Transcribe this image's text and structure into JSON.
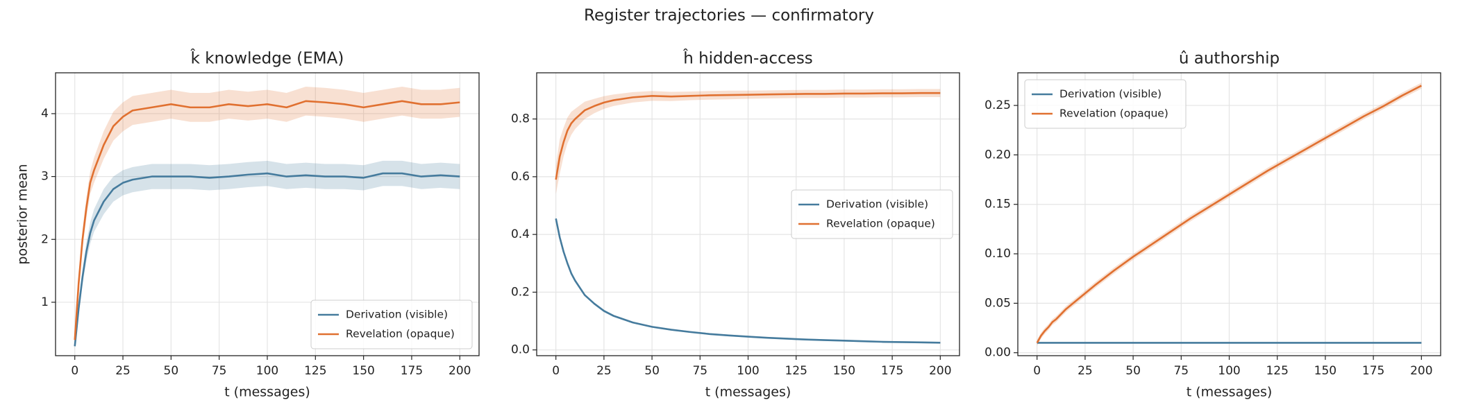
{
  "title": "Register trajectories — confirmatory",
  "chart_data": [
    {
      "type": "line",
      "title": "k̂ knowledge (EMA)",
      "xlabel": "t (messages)",
      "ylabel": "posterior mean",
      "x": [
        0,
        2,
        4,
        6,
        8,
        10,
        15,
        20,
        25,
        30,
        40,
        50,
        60,
        70,
        80,
        90,
        100,
        110,
        120,
        130,
        140,
        150,
        160,
        170,
        180,
        190,
        200
      ],
      "xlim": [
        -10,
        210
      ],
      "xticks": [
        0,
        25,
        50,
        75,
        100,
        125,
        150,
        175,
        200
      ],
      "ylim": [
        0.15,
        4.65
      ],
      "yticks": [
        1,
        2,
        3,
        4
      ],
      "grid": true,
      "legend": "lower right",
      "series": [
        {
          "name": "Derivation (visible)",
          "color": "#457b9d",
          "values": [
            0.3,
            0.9,
            1.4,
            1.8,
            2.1,
            2.3,
            2.6,
            2.8,
            2.9,
            2.95,
            3.0,
            3.0,
            3.0,
            2.98,
            3.0,
            3.03,
            3.05,
            3.0,
            3.02,
            3.0,
            3.0,
            2.98,
            3.05,
            3.05,
            3.0,
            3.02,
            3.0
          ],
          "lower": [
            0.25,
            0.8,
            1.28,
            1.65,
            1.93,
            2.12,
            2.4,
            2.6,
            2.7,
            2.75,
            2.8,
            2.8,
            2.8,
            2.78,
            2.8,
            2.83,
            2.85,
            2.8,
            2.82,
            2.8,
            2.8,
            2.78,
            2.85,
            2.85,
            2.8,
            2.82,
            2.8
          ],
          "upper": [
            0.35,
            1.0,
            1.52,
            1.95,
            2.27,
            2.48,
            2.8,
            3.0,
            3.1,
            3.15,
            3.2,
            3.2,
            3.2,
            3.18,
            3.2,
            3.23,
            3.25,
            3.2,
            3.22,
            3.2,
            3.2,
            3.18,
            3.25,
            3.25,
            3.2,
            3.22,
            3.2
          ]
        },
        {
          "name": "Revelation (opaque)",
          "color": "#e07030",
          "values": [
            0.4,
            1.3,
            2.0,
            2.5,
            2.9,
            3.1,
            3.5,
            3.8,
            3.95,
            4.05,
            4.1,
            4.15,
            4.1,
            4.1,
            4.15,
            4.12,
            4.15,
            4.1,
            4.2,
            4.18,
            4.15,
            4.1,
            4.15,
            4.2,
            4.15,
            4.15,
            4.18
          ],
          "lower": [
            0.32,
            1.18,
            1.85,
            2.33,
            2.72,
            2.9,
            3.28,
            3.57,
            3.72,
            3.82,
            3.87,
            3.92,
            3.87,
            3.87,
            3.92,
            3.89,
            3.92,
            3.87,
            3.97,
            3.95,
            3.92,
            3.87,
            3.92,
            3.97,
            3.92,
            3.92,
            3.95
          ],
          "upper": [
            0.48,
            1.42,
            2.15,
            2.67,
            3.08,
            3.3,
            3.72,
            4.03,
            4.18,
            4.28,
            4.33,
            4.38,
            4.33,
            4.33,
            4.38,
            4.35,
            4.38,
            4.33,
            4.43,
            4.41,
            4.38,
            4.33,
            4.38,
            4.43,
            4.38,
            4.38,
            4.41
          ]
        }
      ]
    },
    {
      "type": "line",
      "title": "ĥ hidden-access",
      "xlabel": "t (messages)",
      "x": [
        0,
        2,
        4,
        6,
        8,
        10,
        15,
        20,
        25,
        30,
        40,
        50,
        60,
        70,
        80,
        90,
        100,
        110,
        120,
        130,
        140,
        150,
        160,
        170,
        180,
        190,
        200
      ],
      "xlim": [
        -10,
        210
      ],
      "xticks": [
        0,
        25,
        50,
        75,
        100,
        125,
        150,
        175,
        200
      ],
      "ylim": [
        -0.02,
        0.96
      ],
      "yticks": [
        {
          "value": 0,
          "label": "0.0"
        },
        0.2,
        0.4,
        0.6,
        0.8
      ],
      "grid": true,
      "legend": "center right",
      "series": [
        {
          "name": "Derivation (visible)",
          "color": "#457b9d",
          "values": [
            0.455,
            0.39,
            0.34,
            0.3,
            0.265,
            0.24,
            0.19,
            0.16,
            0.135,
            0.118,
            0.095,
            0.08,
            0.07,
            0.062,
            0.055,
            0.05,
            0.046,
            0.042,
            0.039,
            0.036,
            0.034,
            0.032,
            0.03,
            0.028,
            0.027,
            0.026,
            0.025
          ],
          "lower": [
            0.45,
            0.385,
            0.335,
            0.295,
            0.26,
            0.235,
            0.186,
            0.156,
            0.131,
            0.114,
            0.092,
            0.077,
            0.067,
            0.059,
            0.052,
            0.047,
            0.043,
            0.039,
            0.036,
            0.033,
            0.031,
            0.029,
            0.027,
            0.025,
            0.024,
            0.023,
            0.022
          ],
          "upper": [
            0.46,
            0.395,
            0.345,
            0.305,
            0.27,
            0.245,
            0.194,
            0.164,
            0.139,
            0.122,
            0.098,
            0.083,
            0.073,
            0.065,
            0.058,
            0.053,
            0.049,
            0.045,
            0.042,
            0.039,
            0.037,
            0.035,
            0.033,
            0.031,
            0.03,
            0.029,
            0.028
          ]
        },
        {
          "name": "Revelation (opaque)",
          "color": "#e07030",
          "values": [
            0.59,
            0.67,
            0.72,
            0.76,
            0.785,
            0.8,
            0.83,
            0.845,
            0.857,
            0.865,
            0.875,
            0.88,
            0.878,
            0.88,
            0.882,
            0.883,
            0.884,
            0.885,
            0.886,
            0.887,
            0.887,
            0.888,
            0.888,
            0.889,
            0.889,
            0.89,
            0.89
          ],
          "lower": [
            0.54,
            0.61,
            0.67,
            0.715,
            0.745,
            0.765,
            0.8,
            0.82,
            0.835,
            0.845,
            0.857,
            0.863,
            0.862,
            0.865,
            0.867,
            0.868,
            0.87,
            0.871,
            0.872,
            0.873,
            0.873,
            0.874,
            0.874,
            0.875,
            0.875,
            0.876,
            0.876
          ],
          "upper": [
            0.64,
            0.73,
            0.77,
            0.805,
            0.825,
            0.835,
            0.86,
            0.87,
            0.879,
            0.885,
            0.893,
            0.897,
            0.894,
            0.895,
            0.897,
            0.898,
            0.898,
            0.899,
            0.9,
            0.901,
            0.901,
            0.902,
            0.902,
            0.903,
            0.903,
            0.904,
            0.904
          ]
        }
      ]
    },
    {
      "type": "line",
      "title": "û authorship",
      "xlabel": "t (messages)",
      "x": [
        0,
        2,
        4,
        6,
        8,
        10,
        15,
        20,
        25,
        30,
        40,
        50,
        60,
        70,
        80,
        90,
        100,
        110,
        120,
        130,
        140,
        150,
        160,
        170,
        180,
        190,
        200
      ],
      "xlim": [
        -10,
        210
      ],
      "xticks": [
        0,
        25,
        50,
        75,
        100,
        125,
        150,
        175,
        200
      ],
      "ylim": [
        -0.003,
        0.283
      ],
      "yticks": [
        {
          "value": 0,
          "label": "0.00"
        },
        0.05,
        {
          "value": 0.1,
          "label": "0.10"
        },
        0.15,
        {
          "value": 0.2,
          "label": "0.20"
        },
        0.25
      ],
      "grid": true,
      "legend": "upper left",
      "series": [
        {
          "name": "Derivation (visible)",
          "color": "#457b9d",
          "values": [
            0.01,
            0.01,
            0.01,
            0.01,
            0.01,
            0.01,
            0.01,
            0.01,
            0.01,
            0.01,
            0.01,
            0.01,
            0.01,
            0.01,
            0.01,
            0.01,
            0.01,
            0.01,
            0.01,
            0.01,
            0.01,
            0.01,
            0.01,
            0.01,
            0.01,
            0.01,
            0.01
          ]
        },
        {
          "name": "Revelation (opaque)",
          "color": "#e07030",
          "values": [
            0.01,
            0.017,
            0.022,
            0.026,
            0.031,
            0.034,
            0.044,
            0.052,
            0.06,
            0.068,
            0.083,
            0.097,
            0.11,
            0.123,
            0.136,
            0.148,
            0.16,
            0.172,
            0.184,
            0.195,
            0.206,
            0.217,
            0.228,
            0.239,
            0.249,
            0.26,
            0.27
          ],
          "lower": [
            0.007,
            0.014,
            0.019,
            0.023,
            0.028,
            0.031,
            0.041,
            0.049,
            0.057,
            0.065,
            0.08,
            0.094,
            0.107,
            0.12,
            0.133,
            0.145,
            0.157,
            0.169,
            0.181,
            0.192,
            0.203,
            0.214,
            0.225,
            0.236,
            0.246,
            0.257,
            0.267
          ],
          "upper": [
            0.013,
            0.02,
            0.025,
            0.029,
            0.034,
            0.037,
            0.047,
            0.055,
            0.063,
            0.071,
            0.086,
            0.1,
            0.113,
            0.126,
            0.139,
            0.151,
            0.163,
            0.175,
            0.187,
            0.198,
            0.209,
            0.22,
            0.231,
            0.242,
            0.252,
            0.263,
            0.273
          ]
        }
      ]
    }
  ]
}
